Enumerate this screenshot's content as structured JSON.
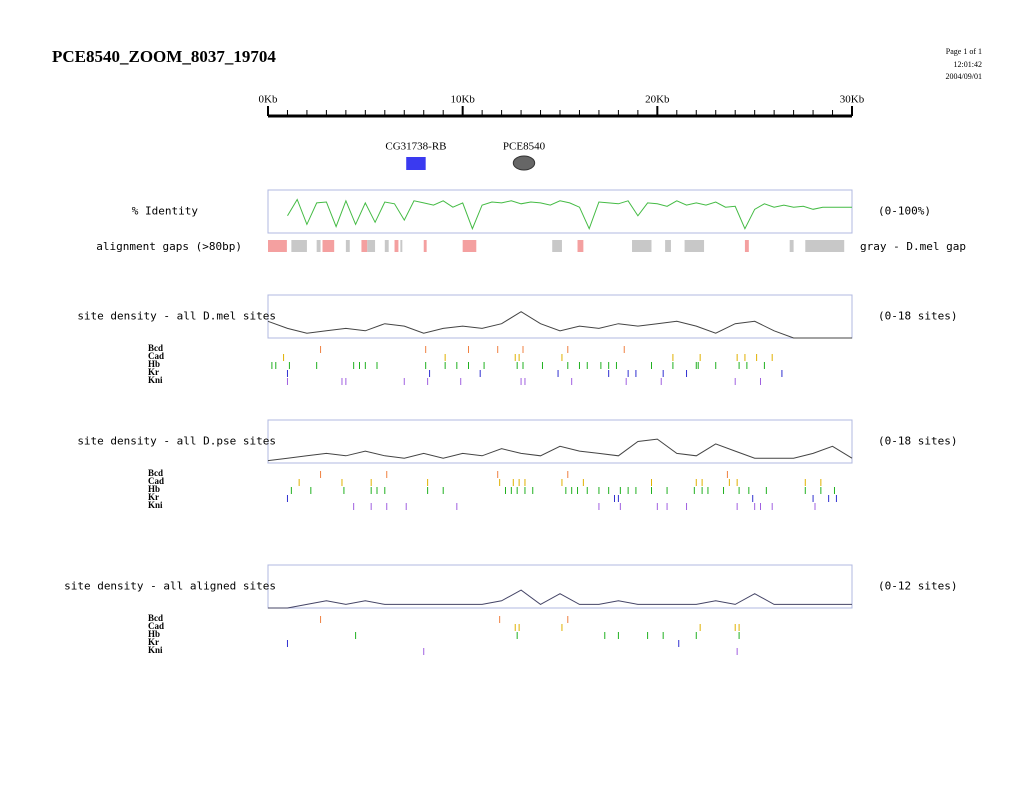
{
  "header": {
    "title": "PCE8540_ZOOM_8037_19704",
    "page": "Page 1 of 1",
    "time": "12:01:42",
    "date": "2004/09/01"
  },
  "ruler": {
    "xlim": [
      0,
      30
    ],
    "ticks": [
      {
        "value": 0,
        "label": "0Kb"
      },
      {
        "value": 10,
        "label": "10Kb"
      },
      {
        "value": 20,
        "label": "20Kb"
      },
      {
        "value": 30,
        "label": "30Kb"
      }
    ],
    "minor_ticks": [
      0,
      1,
      2,
      3,
      4,
      5,
      6,
      7,
      8,
      9,
      10,
      11,
      12,
      13,
      14,
      15,
      16,
      17,
      18,
      19,
      20,
      21,
      22,
      23,
      24,
      25,
      26,
      27,
      28,
      29,
      30
    ]
  },
  "features": [
    {
      "label": "CG31738-RB",
      "start": 7.1,
      "end": 8.1,
      "color": "#3a3af0",
      "shape": "rect"
    },
    {
      "label": "PCE8540",
      "start": 12.6,
      "end": 13.7,
      "color": "#666666",
      "shape": "ellipse"
    }
  ],
  "identity": {
    "label": "% Identity",
    "range": "(0-100%)",
    "ylim": [
      0,
      100
    ],
    "color": "#44bb44",
    "x": [
      0,
      0.5,
      1,
      1.5,
      2,
      2.5,
      3,
      3.5,
      4,
      4.5,
      5,
      5.5,
      6,
      6.5,
      7,
      7.5,
      8,
      8.5,
      9,
      9.5,
      10,
      10.5,
      11,
      11.5,
      12,
      12.5,
      13,
      13.5,
      14,
      14.5,
      15,
      15.5,
      16,
      16.5,
      17,
      17.5,
      18,
      18.5,
      19,
      19.5,
      20,
      20.5,
      21,
      21.5,
      22,
      22.5,
      23,
      23.5,
      24,
      24.5,
      25,
      25.5,
      26,
      26.5,
      27,
      27.5,
      28,
      28.5,
      29,
      29.5,
      30
    ],
    "values": [
      null,
      null,
      40,
      78,
      20,
      70,
      72,
      15,
      75,
      20,
      70,
      25,
      72,
      68,
      30,
      75,
      70,
      65,
      75,
      60,
      70,
      10,
      65,
      72,
      70,
      75,
      68,
      72,
      70,
      65,
      75,
      70,
      60,
      10,
      72,
      70,
      68,
      75,
      40,
      70,
      68,
      62,
      75,
      65,
      70,
      65,
      72,
      60,
      62,
      10,
      55,
      68,
      60,
      65,
      60,
      62,
      55,
      60,
      60,
      60,
      60
    ]
  },
  "gaps": {
    "label": "alignment gaps (>80bp)",
    "legend": "gray - D.mel gap",
    "segments": [
      {
        "start": 0,
        "end": 0.97,
        "color": "#f4a0a0"
      },
      {
        "start": 2.8,
        "end": 3.4,
        "color": "#f4a0a0"
      },
      {
        "start": 4.8,
        "end": 5.1,
        "color": "#f4a0a0"
      },
      {
        "start": 6.5,
        "end": 6.7,
        "color": "#f4a0a0"
      },
      {
        "start": 8.0,
        "end": 8.15,
        "color": "#f4a0a0"
      },
      {
        "start": 10.0,
        "end": 10.7,
        "color": "#f4a0a0"
      },
      {
        "start": 15.9,
        "end": 16.2,
        "color": "#f4a0a0"
      },
      {
        "start": 24.5,
        "end": 24.7,
        "color": "#f4a0a0"
      },
      {
        "start": 1.2,
        "end": 2.0,
        "color": "#c8c8c8"
      },
      {
        "start": 2.5,
        "end": 2.7,
        "color": "#c8c8c8"
      },
      {
        "start": 4.0,
        "end": 4.2,
        "color": "#c8c8c8"
      },
      {
        "start": 5.1,
        "end": 5.5,
        "color": "#c8c8c8"
      },
      {
        "start": 6.0,
        "end": 6.2,
        "color": "#c8c8c8"
      },
      {
        "start": 6.8,
        "end": 6.9,
        "color": "#c8c8c8"
      },
      {
        "start": 14.6,
        "end": 15.1,
        "color": "#c8c8c8"
      },
      {
        "start": 18.7,
        "end": 19.7,
        "color": "#c8c8c8"
      },
      {
        "start": 20.4,
        "end": 20.7,
        "color": "#c8c8c8"
      },
      {
        "start": 21.4,
        "end": 22.4,
        "color": "#c8c8c8"
      },
      {
        "start": 26.8,
        "end": 27.0,
        "color": "#c8c8c8"
      },
      {
        "start": 27.6,
        "end": 29.6,
        "color": "#c8c8c8"
      }
    ]
  },
  "density_tracks": [
    {
      "label": "site density - all D.mel sites",
      "range": "(0-18 sites)",
      "ylim": [
        0,
        18
      ],
      "color": "#444444",
      "x": [
        0,
        1,
        2,
        3,
        4,
        5,
        6,
        7,
        8,
        9,
        10,
        11,
        12,
        13,
        14,
        15,
        16,
        17,
        18,
        19,
        20,
        21,
        22,
        23,
        24,
        25,
        26,
        27,
        28,
        29,
        30
      ],
      "values": [
        7,
        4,
        2,
        3,
        4,
        3,
        6,
        5,
        2,
        4,
        5,
        4,
        6,
        11,
        6,
        3,
        5,
        4,
        6,
        5,
        6,
        7,
        5,
        2,
        6,
        7,
        3,
        0,
        0,
        0,
        0
      ],
      "sites": [
        {
          "name": "Bcd",
          "color": "#f08040",
          "positions": [
            2.7,
            8.1,
            10.3,
            11.8,
            13.1,
            15.4,
            18.3
          ]
        },
        {
          "name": "Cad",
          "color": "#e0b000",
          "positions": [
            0.8,
            9.1,
            12.7,
            12.9,
            15.1,
            20.8,
            22.2,
            24.1,
            24.5,
            25.1,
            25.9
          ]
        },
        {
          "name": "Hb",
          "color": "#20b020",
          "positions": [
            0.2,
            0.4,
            1.1,
            2.5,
            4.4,
            4.7,
            5.0,
            5.6,
            8.1,
            9.1,
            9.7,
            10.3,
            11.1,
            12.8,
            13.1,
            14.1,
            15.4,
            16.0,
            16.4,
            17.1,
            17.5,
            17.9,
            19.7,
            20.8,
            22.0,
            22.1,
            23.0,
            24.2,
            24.6,
            25.5
          ]
        },
        {
          "name": "Kr",
          "color": "#3030d0",
          "positions": [
            1.0,
            8.3,
            10.9,
            14.9,
            17.5,
            18.5,
            18.9,
            20.3,
            21.5,
            26.4
          ]
        },
        {
          "name": "Kni",
          "color": "#a060e0",
          "positions": [
            1.0,
            3.8,
            4.0,
            7.0,
            8.2,
            9.9,
            13.0,
            13.2,
            15.6,
            18.4,
            20.2,
            24.0,
            25.3
          ]
        }
      ]
    },
    {
      "label": "site density - all D.pse sites",
      "range": "(0-18 sites)",
      "ylim": [
        0,
        18
      ],
      "color": "#444444",
      "x": [
        0,
        1,
        2,
        3,
        4,
        5,
        6,
        7,
        8,
        9,
        10,
        11,
        12,
        13,
        14,
        15,
        16,
        17,
        18,
        19,
        20,
        21,
        22,
        23,
        24,
        25,
        26,
        27,
        28,
        29,
        30
      ],
      "values": [
        1,
        2,
        3,
        4,
        3,
        5,
        3,
        2,
        4,
        2,
        4,
        3,
        6,
        4,
        3,
        7,
        5,
        4,
        3,
        9,
        10,
        4,
        3,
        8,
        5,
        2,
        2,
        2,
        4,
        7,
        2
      ],
      "sites": [
        {
          "name": "Bcd",
          "color": "#f08040",
          "positions": [
            2.7,
            6.1,
            11.8,
            15.4,
            23.6
          ]
        },
        {
          "name": "Cad",
          "color": "#e0b000",
          "positions": [
            1.6,
            3.8,
            5.3,
            8.2,
            11.9,
            12.6,
            12.9,
            13.2,
            15.1,
            16.2,
            19.7,
            22.0,
            22.3,
            23.7,
            24.1,
            27.6,
            28.4
          ]
        },
        {
          "name": "Hb",
          "color": "#20b020",
          "positions": [
            1.2,
            2.2,
            3.9,
            5.3,
            5.6,
            6.0,
            8.2,
            9.0,
            12.2,
            12.5,
            12.8,
            13.2,
            13.6,
            15.3,
            15.6,
            15.9,
            16.4,
            17.0,
            17.5,
            18.1,
            18.5,
            18.9,
            19.7,
            20.5,
            21.9,
            22.3,
            22.6,
            23.4,
            24.2,
            24.7,
            25.6,
            27.6,
            28.4,
            29.1
          ]
        },
        {
          "name": "Kr",
          "color": "#3030d0",
          "positions": [
            1.0,
            17.8,
            18.0,
            24.9,
            28.0,
            28.8,
            29.2
          ]
        },
        {
          "name": "Kni",
          "color": "#a060e0",
          "positions": [
            4.4,
            5.3,
            6.1,
            7.1,
            9.7,
            17.0,
            18.1,
            20.0,
            20.5,
            21.5,
            24.1,
            25.0,
            25.3,
            25.9,
            28.1
          ]
        }
      ]
    },
    {
      "label": "site density - all aligned sites",
      "range": "(0-12 sites)",
      "ylim": [
        0,
        12
      ],
      "color": "#444466",
      "x": [
        0,
        1,
        2,
        3,
        4,
        5,
        6,
        7,
        8,
        9,
        10,
        11,
        12,
        13,
        14,
        15,
        16,
        17,
        18,
        19,
        20,
        21,
        22,
        23,
        24,
        25,
        26,
        27,
        28,
        29,
        30
      ],
      "values": [
        0,
        0,
        1,
        2,
        1,
        2,
        1,
        1,
        1,
        1,
        1,
        1,
        2,
        5,
        1,
        4,
        1,
        1,
        2,
        1,
        1,
        1,
        1,
        2,
        1,
        4,
        1,
        1,
        1,
        1,
        1
      ],
      "sites": [
        {
          "name": "Bcd",
          "color": "#f08040",
          "positions": [
            2.7,
            11.9,
            15.4
          ]
        },
        {
          "name": "Cad",
          "color": "#e0b000",
          "positions": [
            12.7,
            12.9,
            15.1,
            22.2,
            24.0,
            24.2
          ]
        },
        {
          "name": "Hb",
          "color": "#20b020",
          "positions": [
            4.5,
            12.8,
            17.3,
            18.0,
            19.5,
            20.3,
            22.0,
            24.2
          ]
        },
        {
          "name": "Kr",
          "color": "#3030d0",
          "positions": [
            1.0,
            21.1
          ]
        },
        {
          "name": "Kni",
          "color": "#a060e0",
          "positions": [
            8.0,
            24.1
          ]
        }
      ]
    }
  ]
}
